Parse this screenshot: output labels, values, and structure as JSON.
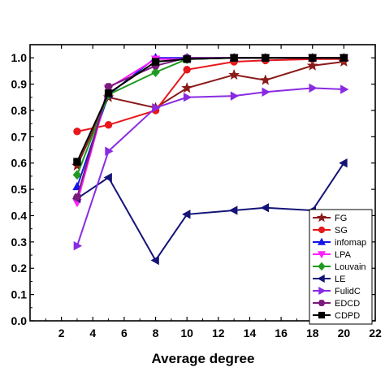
{
  "chart_data": {
    "type": "line",
    "xlabel": "Average degree",
    "ylabel": "",
    "xlim": [
      0,
      22
    ],
    "ylim": [
      0.0,
      1.05
    ],
    "xticks": [
      2,
      4,
      6,
      8,
      10,
      12,
      14,
      16,
      18,
      20,
      22
    ],
    "yticks": [
      0.0,
      0.1,
      0.2,
      0.3,
      0.4,
      0.5,
      0.6,
      0.7,
      0.8,
      0.9,
      1.0
    ],
    "legend_position": "bottom-right",
    "series": [
      {
        "name": "FG",
        "color": "#8b1a1a",
        "marker": "star",
        "x": [
          3,
          5,
          8,
          10,
          13,
          15,
          18,
          20
        ],
        "y": [
          0.59,
          0.85,
          0.81,
          0.885,
          0.935,
          0.915,
          0.97,
          0.985
        ]
      },
      {
        "name": "SG",
        "color": "#e8171b",
        "marker": "circle",
        "x": [
          3,
          5,
          8,
          10,
          13,
          15,
          18,
          20
        ],
        "y": [
          0.72,
          0.745,
          0.8,
          0.955,
          0.985,
          0.99,
          0.995,
          0.995
        ]
      },
      {
        "name": "infomap",
        "color": "#1515e8",
        "marker": "triangle-up",
        "x": [
          3,
          5,
          8,
          10,
          13,
          15,
          18,
          20
        ],
        "y": [
          0.51,
          0.86,
          1.0,
          1.0,
          1.0,
          1.0,
          1.0,
          1.0
        ]
      },
      {
        "name": "LPA",
        "color": "#ff22ff",
        "marker": "triangle-down",
        "x": [
          3,
          5,
          8,
          10,
          13,
          15,
          18,
          20
        ],
        "y": [
          0.45,
          0.885,
          0.995,
          0.995,
          1.0,
          1.0,
          1.0,
          1.0
        ]
      },
      {
        "name": "Louvain",
        "color": "#1f9a1f",
        "marker": "diamond",
        "x": [
          3,
          5,
          8,
          10,
          13,
          15,
          18,
          20
        ],
        "y": [
          0.555,
          0.86,
          0.945,
          0.995,
          1.0,
          1.0,
          1.0,
          1.0
        ]
      },
      {
        "name": "LE",
        "color": "#141478",
        "marker": "triangle-left",
        "x": [
          3,
          5,
          8,
          10,
          13,
          15,
          18,
          20
        ],
        "y": [
          0.465,
          0.545,
          0.23,
          0.405,
          0.42,
          0.43,
          0.42,
          0.6
        ]
      },
      {
        "name": "FulidC",
        "color": "#8a2be2",
        "marker": "triangle-right",
        "x": [
          3,
          5,
          8,
          10,
          13,
          15,
          18,
          20
        ],
        "y": [
          0.285,
          0.645,
          0.81,
          0.85,
          0.855,
          0.87,
          0.885,
          0.88
        ]
      },
      {
        "name": "EDCD",
        "color": "#7a1a7a",
        "marker": "hexagon",
        "x": [
          3,
          5,
          8,
          10,
          13,
          15,
          18,
          20
        ],
        "y": [
          0.47,
          0.89,
          0.97,
          1.0,
          1.0,
          1.0,
          1.0,
          1.0
        ]
      },
      {
        "name": "CDPD",
        "color": "#000000",
        "marker": "square",
        "x": [
          3,
          5,
          8,
          10,
          13,
          15,
          18,
          20
        ],
        "y": [
          0.605,
          0.865,
          0.985,
          0.995,
          1.0,
          1.0,
          1.0,
          1.0
        ]
      }
    ]
  }
}
